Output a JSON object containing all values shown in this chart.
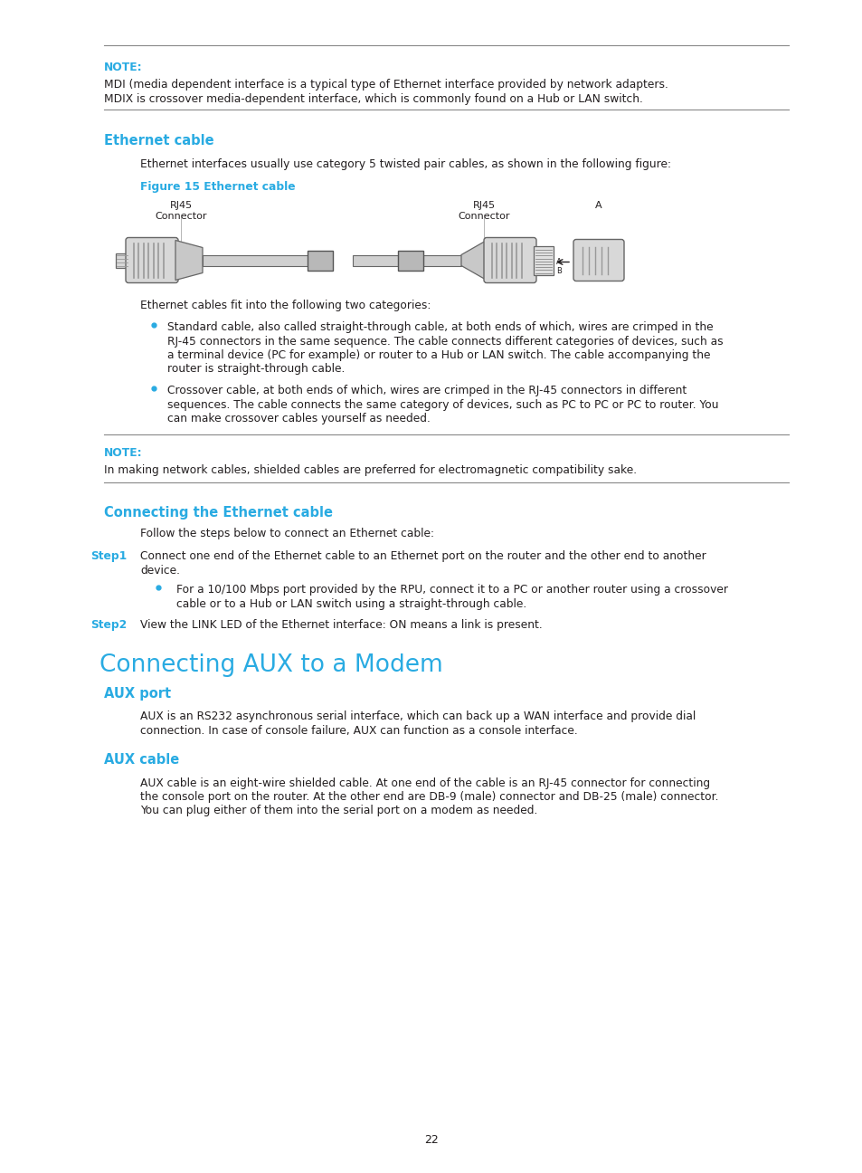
{
  "bg_color": "#ffffff",
  "cyan_color": "#29abe2",
  "black_color": "#231f20",
  "gray_text": "#555555",
  "page_number": "22",
  "note1_label": "NOTE:",
  "note1_line1": "MDI (media dependent interface is a typical type of Ethernet interface provided by network adapters.",
  "note1_line2": "MDIX is crossover media-dependent interface, which is commonly found on a Hub or LAN switch.",
  "section1_title": "Ethernet cable",
  "section1_intro": "Ethernet interfaces usually use category 5 twisted pair cables, as shown in the following figure:",
  "figure_caption": "Figure 15 Ethernet cable",
  "cable_categories_intro": "Ethernet cables fit into the following two categories:",
  "b1_lines": [
    "Standard cable, also called straight-through cable, at both ends of which, wires are crimped in the",
    "RJ-45 connectors in the same sequence. The cable connects different categories of devices, such as",
    "a terminal device (PC for example) or router to a Hub or LAN switch. The cable accompanying the",
    "router is straight-through cable."
  ],
  "b2_lines": [
    "Crossover cable, at both ends of which, wires are crimped in the RJ-45 connectors in different",
    "sequences. The cable connects the same category of devices, such as PC to PC or PC to router. You",
    "can make crossover cables yourself as needed."
  ],
  "note2_label": "NOTE:",
  "note2_body": "In making network cables, shielded cables are preferred for electromagnetic compatibility sake.",
  "section2_title": "Connecting the Ethernet cable",
  "section2_intro": "Follow the steps below to connect an Ethernet cable:",
  "step1_label": "Step1",
  "step1_line1": "Connect one end of the Ethernet cable to an Ethernet port on the router and the other end to another",
  "step1_line2": "device.",
  "step1_b_lines": [
    "For a 10/100 Mbps port provided by the RPU, connect it to a PC or another router using a crossover",
    "cable or to a Hub or LAN switch using a straight-through cable."
  ],
  "step2_label": "Step2",
  "step2_text": "View the LINK LED of the Ethernet interface: ON means a link is present.",
  "big_section_title": "Connecting AUX to a Modem",
  "section3_title": "AUX port",
  "section3_line1": "AUX is an RS232 asynchronous serial interface, which can back up a WAN interface and provide dial",
  "section3_line2": "connection. In case of console failure, AUX can function as a console interface.",
  "section4_title": "AUX cable",
  "section4_lines": [
    "AUX cable is an eight-wire shielded cable. At one end of the cable is an RJ-45 connector for connecting",
    "the console port on the router. At the other end are DB-9 (male) connector and DB-25 (male) connector.",
    "You can plug either of them into the serial port on a modem as needed."
  ]
}
